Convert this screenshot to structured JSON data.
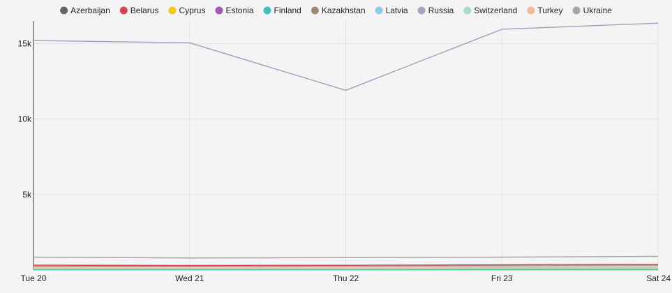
{
  "chart_data": {
    "type": "line",
    "categories": [
      "Tue 20",
      "Wed 21",
      "Thu 22",
      "Fri 23",
      "Sat 24"
    ],
    "ylim": [
      0,
      16500
    ],
    "yticks": [
      5000,
      10000,
      15000
    ],
    "ytick_labels": [
      "5k",
      "10k",
      "15k"
    ],
    "grid": true,
    "legend_position": "top",
    "series": [
      {
        "name": "Azerbaijan",
        "color": "#666666",
        "values": [
          20,
          20,
          20,
          20,
          20
        ]
      },
      {
        "name": "Belarus",
        "color": "#d9434f",
        "values": [
          320,
          300,
          310,
          340,
          360
        ]
      },
      {
        "name": "Cyprus",
        "color": "#f5c518",
        "values": [
          20,
          20,
          20,
          20,
          20
        ]
      },
      {
        "name": "Estonia",
        "color": "#a259b2",
        "values": [
          60,
          60,
          60,
          60,
          60
        ]
      },
      {
        "name": "Finland",
        "color": "#3fc1c0",
        "values": [
          40,
          40,
          40,
          40,
          40
        ]
      },
      {
        "name": "Kazakhstan",
        "color": "#9c8c74",
        "values": [
          230,
          230,
          250,
          270,
          280
        ]
      },
      {
        "name": "Latvia",
        "color": "#8ecae6",
        "values": [
          80,
          80,
          80,
          90,
          90
        ]
      },
      {
        "name": "Russia",
        "color": "#a4a4bf",
        "values": [
          15200,
          15050,
          11900,
          15950,
          16350
        ]
      },
      {
        "name": "Switzerland",
        "color": "#a8dcc1",
        "values": [
          90,
          90,
          90,
          100,
          100
        ]
      },
      {
        "name": "Turkey",
        "color": "#f5b99a",
        "values": [
          140,
          140,
          140,
          150,
          150
        ]
      },
      {
        "name": "Ukraine",
        "color": "#a6a6a6",
        "values": [
          850,
          800,
          820,
          850,
          900
        ]
      }
    ]
  }
}
